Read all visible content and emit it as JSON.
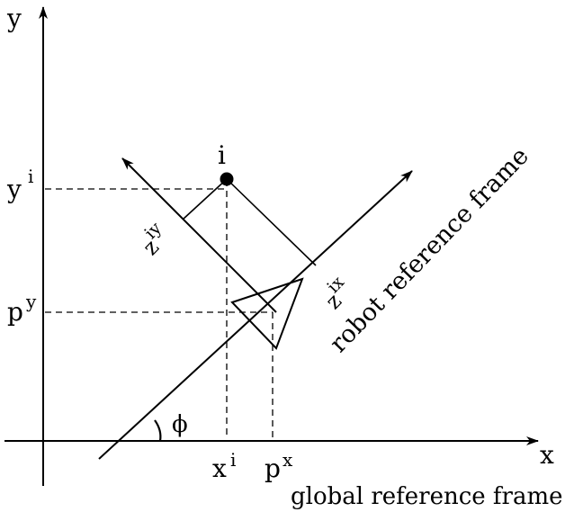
{
  "axes": {
    "x_label": "x",
    "y_label": "y"
  },
  "robot": {
    "angle_label": "ϕ",
    "frame_label": "robot reference frame"
  },
  "global_frame_label": "global reference frame",
  "point": {
    "name": "i",
    "x_label": "x",
    "x_label_sup": "i",
    "y_label": "y",
    "y_label_sup": "i"
  },
  "robot_position": {
    "x_label": "p",
    "x_label_sup": "x",
    "y_label": "p",
    "y_label_sup": "y"
  },
  "components": {
    "zix_label": "z",
    "zix_sup": "ix",
    "ziy_label": "z",
    "ziy_sup": "iy"
  }
}
